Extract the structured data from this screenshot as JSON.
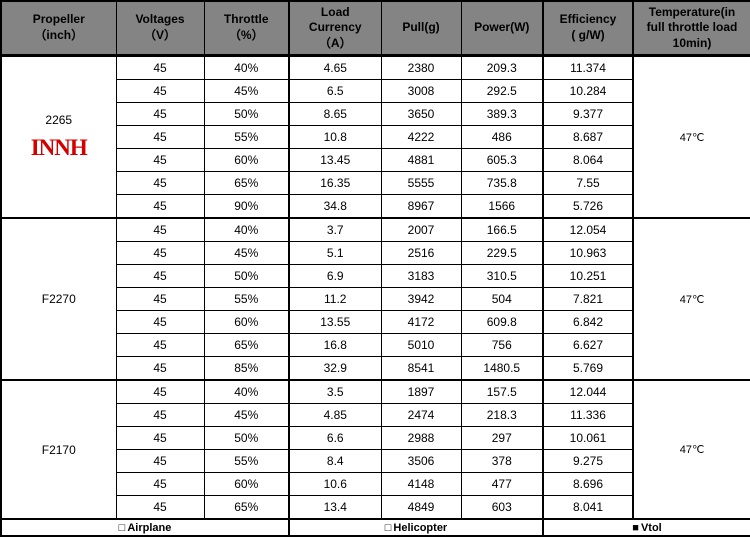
{
  "colors": {
    "header_bg": "#848484",
    "border": "#000000",
    "logo_red": "#d40000",
    "cell_bg": "#ffffff"
  },
  "header": {
    "columns": [
      "Propeller\n（inch）",
      "Voltages\n（V）",
      "Throttle\n（%）",
      "Load\nCurrency\n（A）",
      "Pull(g)",
      "Power(W)",
      "Efficiency\n( g/W)",
      "Temperature(in\nfull throttle load\n10min)"
    ]
  },
  "groups": [
    {
      "propeller": "2265",
      "logo": "INNH",
      "temperature": "47℃",
      "rows": [
        [
          "45",
          "40%",
          "4.65",
          "2380",
          "209.3",
          "11.374"
        ],
        [
          "45",
          "45%",
          "6.5",
          "3008",
          "292.5",
          "10.284"
        ],
        [
          "45",
          "50%",
          "8.65",
          "3650",
          "389.3",
          "9.377"
        ],
        [
          "45",
          "55%",
          "10.8",
          "4222",
          "486",
          "8.687"
        ],
        [
          "45",
          "60%",
          "13.45",
          "4881",
          "605.3",
          "8.064"
        ],
        [
          "45",
          "65%",
          "16.35",
          "5555",
          "735.8",
          "7.55"
        ],
        [
          "45",
          "90%",
          "34.8",
          "8967",
          "1566",
          "5.726"
        ]
      ]
    },
    {
      "propeller": "F2270",
      "logo": "",
      "temperature": "47℃",
      "rows": [
        [
          "45",
          "40%",
          "3.7",
          "2007",
          "166.5",
          "12.054"
        ],
        [
          "45",
          "45%",
          "5.1",
          "2516",
          "229.5",
          "10.963"
        ],
        [
          "45",
          "50%",
          "6.9",
          "3183",
          "310.5",
          "10.251"
        ],
        [
          "45",
          "55%",
          "11.2",
          "3942",
          "504",
          "7.821"
        ],
        [
          "45",
          "60%",
          "13.55",
          "4172",
          "609.8",
          "6.842"
        ],
        [
          "45",
          "65%",
          "16.8",
          "5010",
          "756",
          "6.627"
        ],
        [
          "45",
          "85%",
          "32.9",
          "8541",
          "1480.5",
          "5.769"
        ]
      ]
    },
    {
      "propeller": "F2170",
      "logo": "",
      "temperature": "47℃",
      "rows": [
        [
          "45",
          "40%",
          "3.5",
          "1897",
          "157.5",
          "12.044"
        ],
        [
          "45",
          "45%",
          "4.85",
          "2474",
          "218.3",
          "11.336"
        ],
        [
          "45",
          "50%",
          "6.6",
          "2988",
          "297",
          "10.061"
        ],
        [
          "45",
          "55%",
          "8.4",
          "3506",
          "378",
          "9.275"
        ],
        [
          "45",
          "60%",
          "10.6",
          "4148",
          "477",
          "8.696"
        ],
        [
          "45",
          "65%",
          "13.4",
          "4849",
          "603",
          "8.041"
        ]
      ]
    }
  ],
  "footer": {
    "options": [
      {
        "glyph": "□",
        "label": "Airplane",
        "checked": false
      },
      {
        "glyph": "□",
        "label": "Helicopter",
        "checked": false
      },
      {
        "glyph": "■",
        "label": "Vtol",
        "checked": true
      }
    ]
  }
}
